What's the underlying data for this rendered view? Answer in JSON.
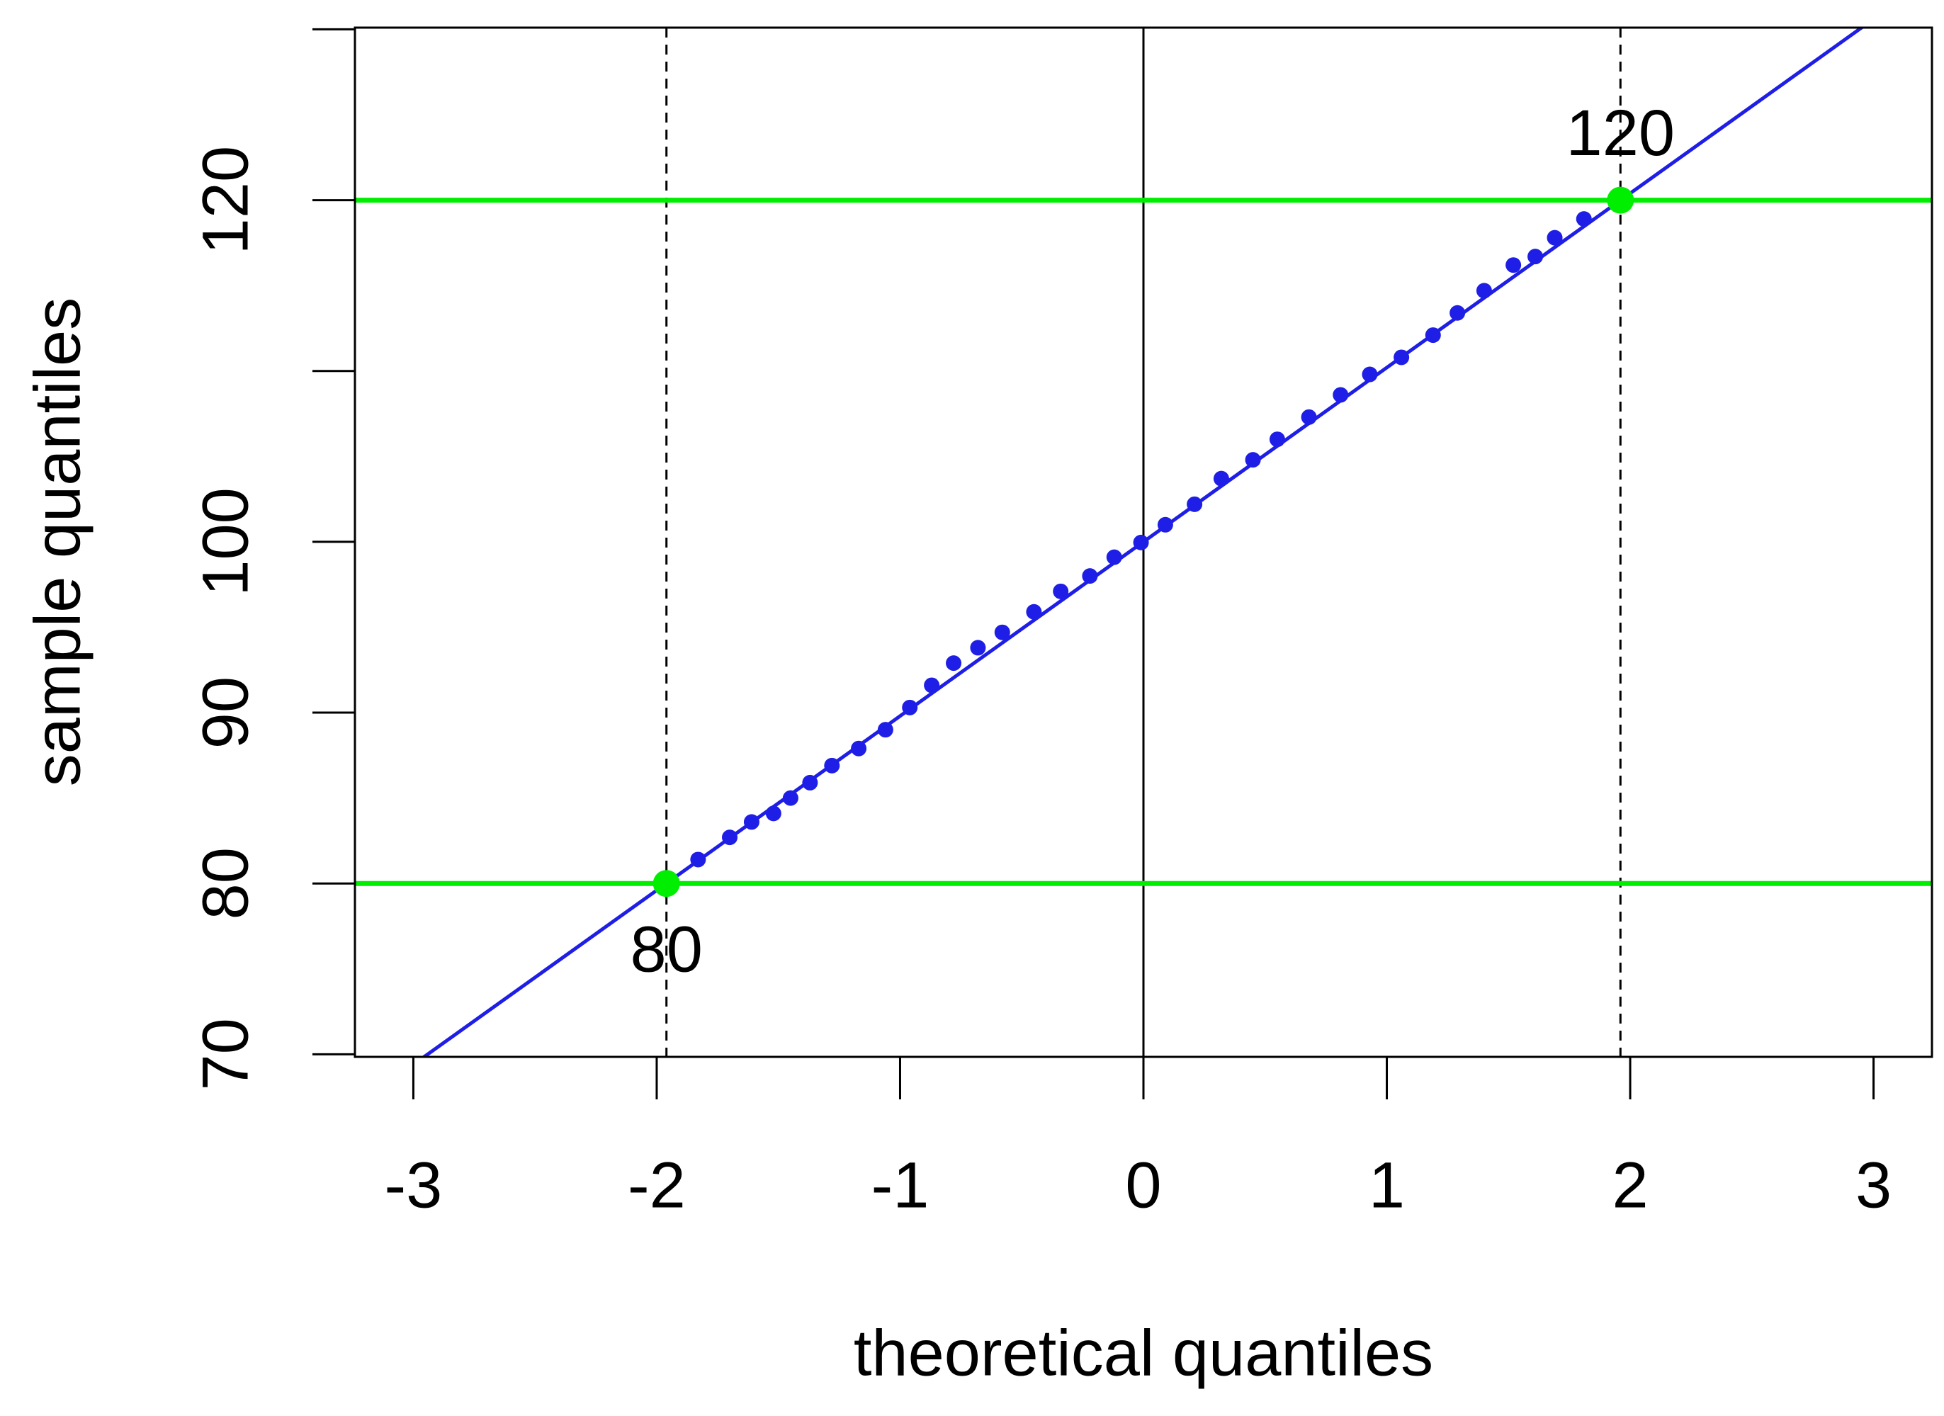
{
  "chart_data": {
    "type": "scatter",
    "x_label": "theoretical quantiles",
    "y_label": "sample quantiles",
    "x": [
      -1.83,
      -1.7,
      -1.61,
      -1.52,
      -1.45,
      -1.37,
      -1.28,
      -1.17,
      -1.06,
      -0.96,
      -0.87,
      -0.78,
      -0.68,
      -0.58,
      -0.45,
      -0.34,
      -0.22,
      -0.12,
      -0.01,
      0.09,
      0.21,
      0.32,
      0.45,
      0.55,
      0.68,
      0.81,
      0.93,
      1.06,
      1.19,
      1.29,
      1.4,
      1.52,
      1.61,
      1.69,
      1.81
    ],
    "values": [
      81.4,
      82.7,
      83.6,
      84.1,
      85.0,
      85.9,
      86.9,
      87.9,
      89.0,
      90.3,
      91.6,
      92.9,
      93.8,
      94.7,
      95.9,
      97.1,
      98.0,
      99.1,
      99.96,
      101.0,
      102.2,
      103.7,
      104.8,
      106.0,
      107.3,
      108.6,
      109.8,
      110.8,
      112.1,
      113.4,
      114.7,
      116.2,
      116.7,
      117.8,
      118.9
    ],
    "color": "#1e1ee6",
    "abline": {
      "intercept": 100,
      "slope": 10.2,
      "color": "#1e1ee6"
    },
    "hlines": [
      {
        "y": 80,
        "color": "#00ee00"
      },
      {
        "y": 120,
        "color": "#00ee00"
      }
    ],
    "vlines": [
      {
        "x": -1.96,
        "style": "dashed"
      },
      {
        "x": 0,
        "style": "solid"
      },
      {
        "x": 1.96,
        "style": "dashed"
      }
    ],
    "annotations": [
      {
        "x": -1.96,
        "y": 80,
        "label": "80",
        "color": "#00ee00"
      },
      {
        "x": 1.96,
        "y": 120,
        "label": "120",
        "color": "#00ee00"
      }
    ],
    "xlim": [
      -3.24,
      3.24
    ],
    "ylim": [
      69.85,
      130.1
    ],
    "xticks": [
      -3,
      -2,
      -1,
      0,
      1,
      2,
      3
    ],
    "yticks": [
      70,
      80,
      90,
      100,
      {
        "value": 110,
        "label": null
      },
      120,
      {
        "value": 130,
        "label": null
      }
    ]
  }
}
